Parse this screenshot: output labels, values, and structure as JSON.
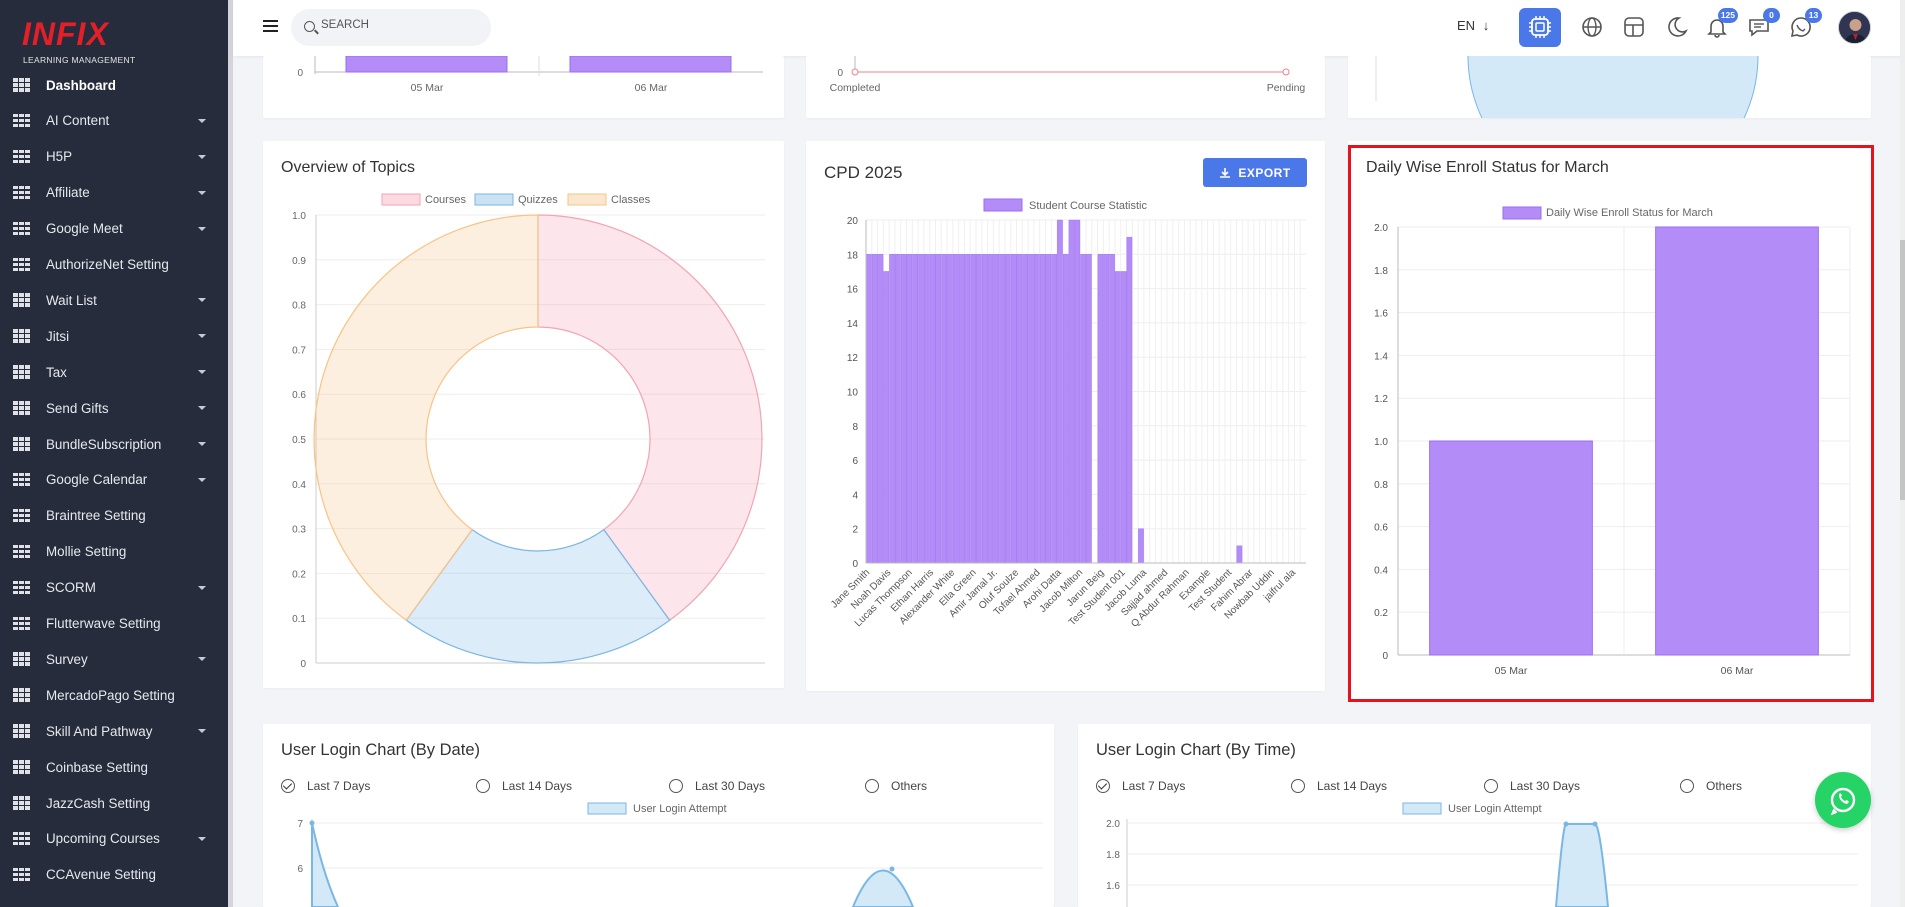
{
  "brand": {
    "logo_text": "INFIX",
    "tagline": "LEARNING MANAGEMENT"
  },
  "sidebar": {
    "items": [
      {
        "label": "Dashboard",
        "caret": false,
        "active": true
      },
      {
        "label": "AI Content",
        "caret": true
      },
      {
        "label": "H5P",
        "caret": true
      },
      {
        "label": "Affiliate",
        "caret": true
      },
      {
        "label": "Google Meet",
        "caret": true
      },
      {
        "label": "AuthorizeNet Setting",
        "caret": false
      },
      {
        "label": "Wait List",
        "caret": true
      },
      {
        "label": "Jitsi",
        "caret": true
      },
      {
        "label": "Tax",
        "caret": true
      },
      {
        "label": "Send Gifts",
        "caret": true
      },
      {
        "label": "BundleSubscription",
        "caret": true
      },
      {
        "label": "Google Calendar",
        "caret": true
      },
      {
        "label": "Braintree Setting",
        "caret": false
      },
      {
        "label": "Mollie Setting",
        "caret": false
      },
      {
        "label": "SCORM",
        "caret": true
      },
      {
        "label": "Flutterwave Setting",
        "caret": false
      },
      {
        "label": "Survey",
        "caret": true
      },
      {
        "label": "MercadoPago Setting",
        "caret": false
      },
      {
        "label": "Skill And Pathway",
        "caret": true
      },
      {
        "label": "Coinbase Setting",
        "caret": false
      },
      {
        "label": "JazzCash Setting",
        "caret": false
      },
      {
        "label": "Upcoming Courses",
        "caret": true
      },
      {
        "label": "CCAvenue Setting",
        "caret": false
      }
    ]
  },
  "topbar": {
    "search_placeholder": "SEARCH",
    "language": "EN",
    "badges": {
      "notifications": "125",
      "messages": "0",
      "chat": "13"
    }
  },
  "colors": {
    "accent": "#4b78e8",
    "bar": "#b38cf8",
    "bar_border": "#9b6cf0",
    "pink": "#f4a3b4",
    "blue": "#7ab7e4",
    "orange": "#f6c486",
    "highlight": "#e3141c",
    "whatsapp": "#25d366"
  },
  "cards": {
    "top_left": {
      "x_labels": [
        "05 Mar",
        "06 Mar"
      ],
      "zero": "0"
    },
    "top_mid": {
      "x_labels": [
        "Completed",
        "Pending"
      ],
      "zero": "0"
    },
    "topics": {
      "title": "Overview of Topics"
    },
    "cpd": {
      "title": "CPD 2025",
      "export_label": "EXPORT"
    },
    "enroll": {
      "title": "Daily Wise Enroll Status for March"
    },
    "login_date": {
      "title": "User Login Chart (By Date)",
      "legend": "User Login Attempt",
      "options": [
        "Last 7 Days",
        "Last 14 Days",
        "Last 30 Days",
        "Others"
      ],
      "selected": 0,
      "y_ticks": [
        "7",
        "6"
      ]
    },
    "login_time": {
      "title": "User Login Chart (By Time)",
      "legend": "User Login Attempt",
      "options": [
        "Last 7 Days",
        "Last 14 Days",
        "Last 30 Days",
        "Others"
      ],
      "selected": 0,
      "y_ticks": [
        "2.0",
        "1.8",
        "1.6"
      ]
    }
  },
  "chart_data": [
    {
      "type": "pie",
      "title": "Overview of Topics",
      "donut": true,
      "categories": [
        "Courses",
        "Quizzes",
        "Classes"
      ],
      "values": [
        0.4,
        0.2,
        0.4
      ],
      "colors": [
        "#f4a3b4",
        "#7ab7e4",
        "#f6c486"
      ],
      "y_ticks": [
        "1.0",
        "0.9",
        "0.8",
        "0.7",
        "0.6",
        "0.5",
        "0.4",
        "0.3",
        "0.2",
        "0.1",
        "0"
      ],
      "ylim": [
        0,
        1
      ],
      "legend": "top"
    },
    {
      "type": "bar",
      "title": "CPD 2025",
      "series": [
        {
          "name": "Student Course Statistic",
          "values": [
            18,
            18,
            18,
            17,
            18,
            18,
            18,
            18,
            18,
            18,
            18,
            18,
            18,
            18,
            18,
            18,
            18,
            18,
            18,
            18,
            18,
            18,
            18,
            18,
            18,
            18,
            18,
            18,
            18,
            18,
            18,
            18,
            18,
            20,
            18,
            20,
            20,
            18,
            18,
            0,
            18,
            18,
            18,
            17,
            17,
            19,
            0,
            2,
            0,
            0,
            0,
            0,
            0,
            0,
            0,
            0,
            0,
            0,
            0,
            0,
            0,
            0,
            0,
            0,
            1,
            0,
            0,
            0,
            0,
            0,
            0,
            0,
            0,
            0,
            0,
            0
          ]
        }
      ],
      "x_tick_labels": [
        "Jane Smith",
        "Noah Davis",
        "Lucas Thompson",
        "Ethan Harris",
        "Alexander White",
        "Ella Green",
        "Amir Jamal Jr.",
        "Oluf Soulze",
        "Tofael Ahmed",
        "Arohi Datta",
        "Jacob Milton",
        "Jarun Beig",
        "Test Student 001",
        "Jacob Luma",
        "Sajjad ahmed",
        "Q Abdur Rahman",
        "Example",
        "Test Student",
        "Fahim Abrar",
        "Nowbab Uddin",
        "jaifrul ala"
      ],
      "y_ticks": [
        "20",
        "18",
        "16",
        "14",
        "12",
        "10",
        "8",
        "6",
        "4",
        "2",
        "0"
      ],
      "ylim": [
        0,
        20
      ],
      "legend": "top"
    },
    {
      "type": "bar",
      "title": "Daily Wise Enroll Status for March",
      "categories": [
        "05 Mar",
        "06 Mar"
      ],
      "series": [
        {
          "name": "Daily Wise Enroll Status for March",
          "values": [
            1,
            2
          ]
        }
      ],
      "y_ticks": [
        "2.0",
        "1.8",
        "1.6",
        "1.4",
        "1.2",
        "1.0",
        "0.8",
        "0.6",
        "0.4",
        "0.2",
        "0"
      ],
      "ylim": [
        0,
        2
      ],
      "grid": true,
      "legend": "top"
    }
  ]
}
